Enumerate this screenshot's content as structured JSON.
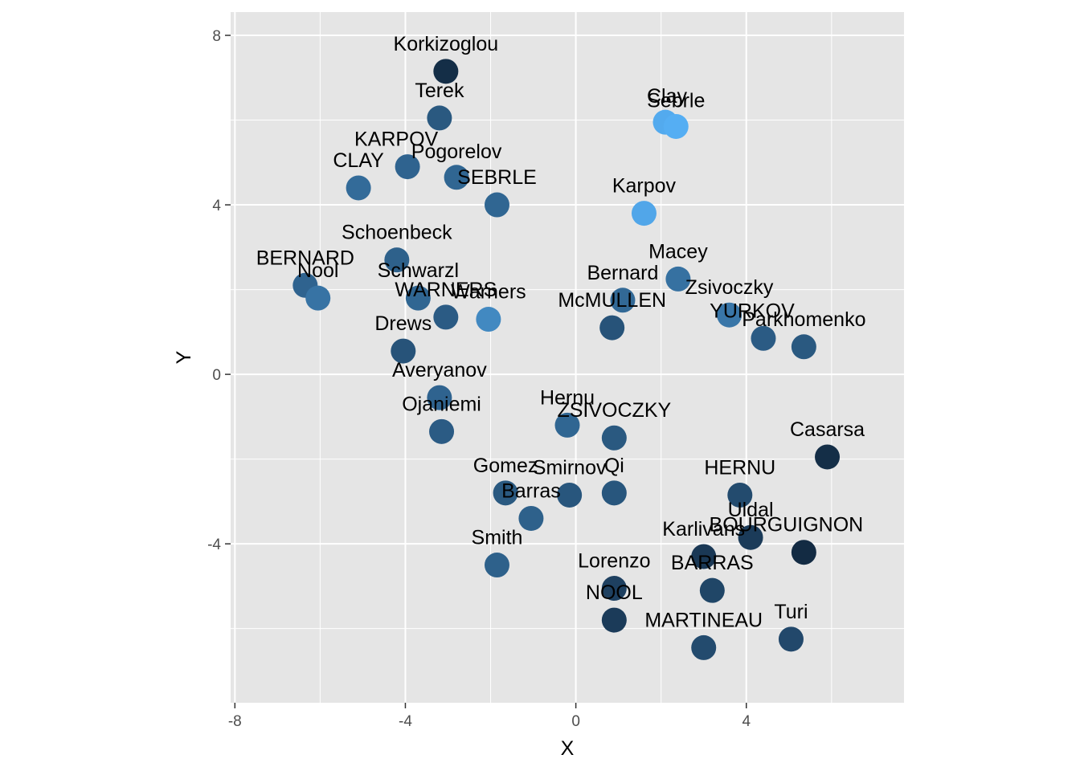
{
  "chart_data": {
    "type": "scatter",
    "xlabel": "X",
    "ylabel": "Y",
    "xlim": [
      -8.1,
      7.7
    ],
    "ylim": [
      -7.75,
      8.55
    ],
    "xticks": [
      -8,
      -4,
      0,
      4
    ],
    "xtick_labels": [
      "-8",
      "-4",
      "0",
      "4"
    ],
    "yticks": [
      -4,
      0,
      4,
      8
    ],
    "ytick_labels": [
      "-4",
      "0",
      "4",
      "8"
    ],
    "grid": true,
    "legend": "none",
    "colors": {
      "panel": "#e5e5e5",
      "grid": "#ffffff",
      "light": "#56b1f7",
      "dark": "#132b43"
    },
    "points": [
      {
        "label": "Korkizoglou",
        "x": -3.05,
        "y": 7.15,
        "shade": 0.02
      },
      {
        "label": "Terek",
        "x": -3.2,
        "y": 6.05,
        "shade": 0.34
      },
      {
        "label": "Clay",
        "x": 2.1,
        "y": 5.95,
        "shade": 0.95
      },
      {
        "label": "Sebrle",
        "x": 2.35,
        "y": 5.85,
        "shade": 0.98
      },
      {
        "label": "KARPOV",
        "x": -3.95,
        "y": 4.9,
        "shade": 0.42
      },
      {
        "label": "Pogorelov",
        "x": -2.8,
        "y": 4.65,
        "shade": 0.44
      },
      {
        "label": "CLAY",
        "x": -5.1,
        "y": 4.4,
        "shade": 0.48
      },
      {
        "label": "SEBRLE",
        "x": -1.85,
        "y": 4.0,
        "shade": 0.44
      },
      {
        "label": "Karpov",
        "x": 1.6,
        "y": 3.8,
        "shade": 0.92
      },
      {
        "label": "Schoenbeck",
        "x": -4.2,
        "y": 2.7,
        "shade": 0.4
      },
      {
        "label": "BERNARD",
        "x": -6.35,
        "y": 2.1,
        "shade": 0.42
      },
      {
        "label": "Nool",
        "x": -6.05,
        "y": 1.8,
        "shade": 0.54
      },
      {
        "label": "Macey",
        "x": 2.4,
        "y": 2.25,
        "shade": 0.52
      },
      {
        "label": "Schwarzl",
        "x": -3.7,
        "y": 1.8,
        "shade": 0.44
      },
      {
        "label": "Bernard",
        "x": 1.1,
        "y": 1.75,
        "shade": 0.46
      },
      {
        "label": "WARNERS",
        "x": -3.05,
        "y": 1.35,
        "shade": 0.36
      },
      {
        "label": "Warners",
        "x": -2.05,
        "y": 1.3,
        "shade": 0.7
      },
      {
        "label": "Zsivoczky",
        "x": 3.6,
        "y": 1.4,
        "shade": 0.56
      },
      {
        "label": "McMULLEN",
        "x": 0.85,
        "y": 1.1,
        "shade": 0.3
      },
      {
        "label": "YURKOV",
        "x": 4.4,
        "y": 0.85,
        "shade": 0.36
      },
      {
        "label": "Parkhomenko",
        "x": 5.35,
        "y": 0.65,
        "shade": 0.34
      },
      {
        "label": "Drews",
        "x": -4.05,
        "y": 0.55,
        "shade": 0.3
      },
      {
        "label": "Averyanov",
        "x": -3.2,
        "y": -0.55,
        "shade": 0.42
      },
      {
        "label": "Hernu",
        "x": -0.2,
        "y": -1.2,
        "shade": 0.44
      },
      {
        "label": "Ojaniemi",
        "x": -3.15,
        "y": -1.35,
        "shade": 0.36
      },
      {
        "label": "ZSIVOCZKY",
        "x": 0.9,
        "y": -1.5,
        "shade": 0.34
      },
      {
        "label": "Casarsa",
        "x": 5.9,
        "y": -1.95,
        "shade": 0.02
      },
      {
        "label": "HERNU",
        "x": 3.85,
        "y": -2.85,
        "shade": 0.24
      },
      {
        "label": "Gomez",
        "x": -1.65,
        "y": -2.8,
        "shade": 0.34
      },
      {
        "label": "Smirnov",
        "x": -0.15,
        "y": -2.85,
        "shade": 0.32
      },
      {
        "label": "Qi",
        "x": 0.9,
        "y": -2.8,
        "shade": 0.32
      },
      {
        "label": "Barras",
        "x": -1.05,
        "y": -3.4,
        "shade": 0.4
      },
      {
        "label": "Uldal",
        "x": 4.1,
        "y": -3.85,
        "shade": 0.12
      },
      {
        "label": "BOURGUIGNON",
        "x": 5.35,
        "y": -4.2,
        "shade": 0.0
      },
      {
        "label": "Karlivans",
        "x": 3.0,
        "y": -4.3,
        "shade": 0.1
      },
      {
        "label": "Smith",
        "x": -1.85,
        "y": -4.5,
        "shade": 0.4
      },
      {
        "label": "BARRAS",
        "x": 3.2,
        "y": -5.1,
        "shade": 0.2
      },
      {
        "label": "Lorenzo",
        "x": 0.9,
        "y": -5.05,
        "shade": 0.16
      },
      {
        "label": "NOOL",
        "x": 0.9,
        "y": -5.8,
        "shade": 0.12
      },
      {
        "label": "MARTINEAU",
        "x": 3.0,
        "y": -6.45,
        "shade": 0.24
      },
      {
        "label": "Turi",
        "x": 5.05,
        "y": -6.25,
        "shade": 0.22
      }
    ],
    "label_offsets": {
      "Korkizoglou": [
        0,
        -35
      ],
      "Terek": [
        0,
        -35
      ],
      "Clay": [
        2,
        -33
      ],
      "Sebrle": [
        0,
        -33
      ],
      "KARPOV": [
        -14,
        -35
      ],
      "Pogorelov": [
        0,
        -33
      ],
      "CLAY": [
        0,
        -35
      ],
      "SEBRLE": [
        0,
        -35
      ],
      "Karpov": [
        0,
        -35
      ],
      "Schoenbeck": [
        0,
        -35
      ],
      "BERNARD": [
        0,
        -35
      ],
      "Nool": [
        0,
        -35
      ],
      "Macey": [
        0,
        -35
      ],
      "Schwarzl": [
        0,
        -35
      ],
      "Bernard": [
        0,
        -35
      ],
      "WARNERS": [
        0,
        -35
      ],
      "Warners": [
        0,
        -35
      ],
      "Zsivoczky": [
        0,
        -35
      ],
      "McMULLEN": [
        0,
        -35
      ],
      "YURKOV": [
        -14,
        -35
      ],
      "Parkhomenko": [
        0,
        -35
      ],
      "Drews": [
        0,
        -35
      ],
      "Averyanov": [
        0,
        -35
      ],
      "Hernu": [
        0,
        -35
      ],
      "Ojaniemi": [
        0,
        -35
      ],
      "ZSIVOCZKY": [
        0,
        -35
      ],
      "Casarsa": [
        0,
        -35
      ],
      "HERNU": [
        0,
        -35
      ],
      "Gomez": [
        0,
        -35
      ],
      "Smirnov": [
        0,
        -35
      ],
      "Qi": [
        0,
        -35
      ],
      "Barras": [
        0,
        -35
      ],
      "Uldal": [
        0,
        -35
      ],
      "BOURGUIGNON": [
        -22,
        -35
      ],
      "Karlivans": [
        0,
        -35
      ],
      "Smith": [
        0,
        -35
      ],
      "BARRAS": [
        0,
        -35
      ],
      "Lorenzo": [
        0,
        -35
      ],
      "NOOL": [
        0,
        -35
      ],
      "MARTINEAU": [
        0,
        -35
      ],
      "Turi": [
        0,
        -35
      ]
    }
  }
}
